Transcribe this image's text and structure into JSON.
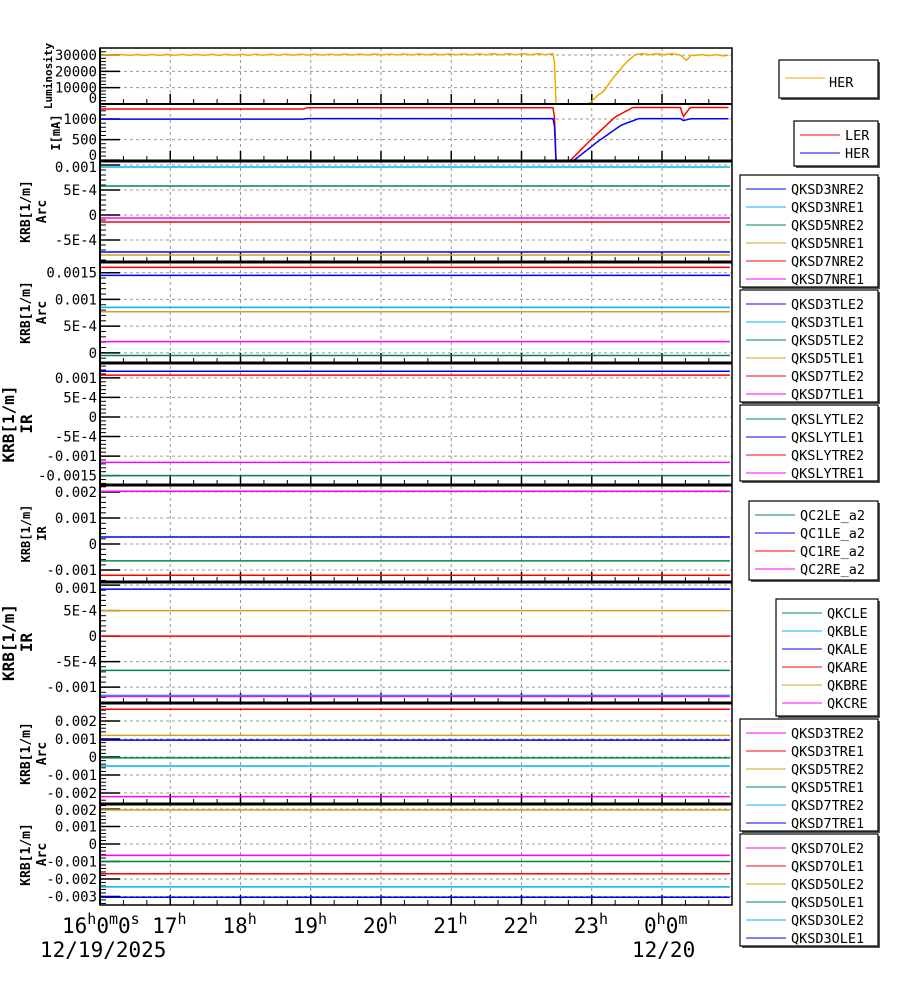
{
  "colors": {
    "blue": "#0000ff",
    "lightblue": "#00b4f0",
    "green": "#00884a",
    "gold": "#d4a020",
    "orange": "#f0a800",
    "red": "#ff0000",
    "magenta": "#ff00ff"
  },
  "x_axis": {
    "range": [
      "16:00",
      "00:58"
    ],
    "ticks": [
      {
        "t": "16:00",
        "label": "16h0m0s"
      },
      {
        "t": "17:00",
        "label": "17h"
      },
      {
        "t": "18:00",
        "label": "18h"
      },
      {
        "t": "19:00",
        "label": "19h"
      },
      {
        "t": "20:00",
        "label": "20h"
      },
      {
        "t": "21:00",
        "label": "21h"
      },
      {
        "t": "22:00",
        "label": "22h"
      },
      {
        "t": "23:00",
        "label": "23h"
      },
      {
        "t": "00:00",
        "label": "0h0m"
      }
    ],
    "dates": [
      {
        "t": "16:00",
        "label": "12/19/2025"
      },
      {
        "t": "00:00",
        "label": "12/20"
      }
    ]
  },
  "chart_data": [
    {
      "type": "line",
      "ylabel": [
        "Luminosity"
      ],
      "ylim": [
        0,
        34300
      ],
      "grid": true,
      "yticks": [
        {
          "v": 30000,
          "label": "30000"
        },
        {
          "v": 20000,
          "label": "20000"
        },
        {
          "v": 10000,
          "label": "10000"
        },
        {
          "v": 0,
          "label": "0"
        }
      ],
      "legend": {
        "placement": "right",
        "large": true
      },
      "series": [
        {
          "name": "HER",
          "color": "orange",
          "points": [
            [
              "16:00",
              30000
            ],
            [
              "22:28",
              30500
            ],
            [
              "22:29",
              0
            ],
            [
              "22:57",
              0
            ],
            [
              "23:10",
              8000
            ],
            [
              "23:25",
              22000
            ],
            [
              "23:37",
              30500
            ],
            [
              "00:15",
              30500
            ],
            [
              "00:21",
              26500
            ],
            [
              "00:25",
              30000
            ],
            [
              "00:58",
              29800
            ]
          ]
        }
      ]
    },
    {
      "type": "line",
      "ylabel": [
        "I[mA]"
      ],
      "ylim": [
        -20,
        1366
      ],
      "grid": true,
      "yticks": [
        {
          "v": 1000,
          "label": "1000"
        },
        {
          "v": 500,
          "label": "500"
        },
        {
          "v": 0,
          "label": "0"
        }
      ],
      "legend": {
        "placement": "right"
      },
      "series": [
        {
          "name": "LER",
          "color": "red",
          "points": [
            [
              "16:00",
              1245
            ],
            [
              "18:55",
              1245
            ],
            [
              "18:56",
              1275
            ],
            [
              "22:28",
              1275
            ],
            [
              "22:29",
              0
            ],
            [
              "22:42",
              0
            ],
            [
              "23:00",
              520
            ],
            [
              "23:20",
              1050
            ],
            [
              "23:35",
              1280
            ],
            [
              "00:16",
              1280
            ],
            [
              "00:18",
              1050
            ],
            [
              "00:24",
              1280
            ],
            [
              "00:58",
              1280
            ]
          ]
        },
        {
          "name": "HER",
          "color": "blue",
          "points": [
            [
              "16:00",
              1000
            ],
            [
              "18:55",
              1000
            ],
            [
              "18:56",
              1010
            ],
            [
              "22:28",
              1010
            ],
            [
              "22:29",
              0
            ],
            [
              "22:45",
              0
            ],
            [
              "23:05",
              450
            ],
            [
              "23:25",
              850
            ],
            [
              "23:40",
              1010
            ],
            [
              "00:16",
              1010
            ],
            [
              "00:18",
              960
            ],
            [
              "00:24",
              1005
            ],
            [
              "00:58",
              1005
            ]
          ]
        }
      ]
    },
    {
      "type": "line",
      "ylabel": [
        "KRB[1/m]",
        "Arc"
      ],
      "ylim": [
        -0.00094,
        0.00108
      ],
      "grid": true,
      "yticks": [
        {
          "v": 0.001,
          "label": "0.001"
        },
        {
          "v": 0.0005,
          "label": "5E-4"
        },
        {
          "v": 0,
          "label": "0"
        },
        {
          "v": -0.0005,
          "label": "-5E-4"
        }
      ],
      "series": [
        {
          "name": "QKSD3NRE2",
          "color": "blue",
          "value": -0.00074
        },
        {
          "name": "QKSD3NRE1",
          "color": "lightblue",
          "value": 0.00096
        },
        {
          "name": "QKSD5NRE2",
          "color": "green",
          "value": 0.00058
        },
        {
          "name": "QKSD5NRE1",
          "color": "gold",
          "value": -0.0008
        },
        {
          "name": "QKSD7NRE2",
          "color": "red",
          "value": -0.00014
        },
        {
          "name": "QKSD7NRE1",
          "color": "magenta",
          "value": -6e-05
        }
      ]
    },
    {
      "type": "line",
      "ylabel": [
        "KRB[1/m]",
        "Arc"
      ],
      "ylim": [
        -0.00019,
        0.0017
      ],
      "grid": true,
      "yticks": [
        {
          "v": 0.0015,
          "label": "0.0015"
        },
        {
          "v": 0.001,
          "label": "0.001"
        },
        {
          "v": 0.0005,
          "label": "5E-4"
        },
        {
          "v": 0,
          "label": "0"
        }
      ],
      "series": [
        {
          "name": "QKSD3TLE2",
          "color": "blue",
          "value": 0.00145
        },
        {
          "name": "QKSD3TLE1",
          "color": "lightblue",
          "value": 0.00085
        },
        {
          "name": "QKSD5TLE2",
          "color": "green",
          "value": -5e-05
        },
        {
          "name": "QKSD5TLE1",
          "color": "gold",
          "value": 0.00077
        },
        {
          "name": "QKSD7TLE2",
          "color": "red",
          "value": 0.0016
        },
        {
          "name": "QKSD7TLE1",
          "color": "magenta",
          "value": 0.00021
        }
      ]
    },
    {
      "type": "line",
      "ylabel": [
        "KRB[1/m]",
        "IR"
      ],
      "ylim": [
        -0.00174,
        0.00138
      ],
      "grid": true,
      "yticks": [
        {
          "v": 0.001,
          "label": "0.001"
        },
        {
          "v": 0.0005,
          "label": "5E-4"
        },
        {
          "v": 0,
          "label": "0"
        },
        {
          "v": -0.0005,
          "label": "-5E-4"
        },
        {
          "v": -0.001,
          "label": "-0.001"
        },
        {
          "v": -0.0015,
          "label": "-0.0015"
        }
      ],
      "series": [
        {
          "name": "QKSLYTLE2",
          "color": "green",
          "value": -0.0015
        },
        {
          "name": "QKSLYTLE1",
          "color": "blue",
          "value": 0.00117
        },
        {
          "name": "QKSLYTRE2",
          "color": "red",
          "value": 0.00107
        },
        {
          "name": "QKSLYTRE1",
          "color": "magenta",
          "value": -0.00116
        }
      ]
    },
    {
      "type": "line",
      "ylabel": [
        "KRB[1/m]",
        "IR"
      ],
      "ylim": [
        -0.00146,
        0.00227
      ],
      "grid": true,
      "yticks": [
        {
          "v": 0.002,
          "label": "0.002"
        },
        {
          "v": 0.001,
          "label": "0.001"
        },
        {
          "v": 0,
          "label": "0"
        },
        {
          "v": -0.001,
          "label": "-0.001"
        }
      ],
      "series": [
        {
          "name": "QC2LE_a2",
          "color": "green",
          "value": -0.00065
        },
        {
          "name": "QC1LE_a2",
          "color": "blue",
          "value": 0.00027
        },
        {
          "name": "QC1RE_a2",
          "color": "red",
          "value": -0.0012
        },
        {
          "name": "QC2RE_a2",
          "color": "magenta",
          "value": 0.00203
        }
      ]
    },
    {
      "type": "line",
      "ylabel": [
        "KRB[1/m]",
        "IR"
      ],
      "ylim": [
        -0.00131,
        0.00106
      ],
      "grid": true,
      "yticks": [
        {
          "v": 0.001,
          "label": "0.001"
        },
        {
          "v": 0.0005,
          "label": "5E-4"
        },
        {
          "v": 0,
          "label": "0"
        },
        {
          "v": -0.0005,
          "label": "-5E-4"
        },
        {
          "v": -0.001,
          "label": "-0.001"
        }
      ],
      "series": [
        {
          "name": "QKCLE",
          "color": "green",
          "value": -0.00067
        },
        {
          "name": "QKBLE",
          "color": "lightblue",
          "value": -0.00116
        },
        {
          "name": "QKALE",
          "color": "blue",
          "value": 0.00092
        },
        {
          "name": "QKARE",
          "color": "red",
          "value": 0
        },
        {
          "name": "QKBRE",
          "color": "gold",
          "value": 0.0005
        },
        {
          "name": "QKCRE",
          "color": "magenta",
          "value": -0.00118
        }
      ]
    },
    {
      "type": "line",
      "ylabel": [
        "KRB[1/m]",
        "Arc"
      ],
      "ylim": [
        -0.00261,
        0.003
      ],
      "grid": true,
      "yticks": [
        {
          "v": 0.002,
          "label": "0.002"
        },
        {
          "v": 0.001,
          "label": "0.001"
        },
        {
          "v": 0,
          "label": "0"
        },
        {
          "v": -0.001,
          "label": "-0.001"
        },
        {
          "v": -0.002,
          "label": "-0.002"
        }
      ],
      "series": [
        {
          "name": "QKSD3TRE2",
          "color": "magenta",
          "value": -0.0022
        },
        {
          "name": "QKSD3TRE1",
          "color": "red",
          "value": 0.00265
        },
        {
          "name": "QKSD5TRE2",
          "color": "gold",
          "value": 0.0012
        },
        {
          "name": "QKSD5TRE1",
          "color": "green",
          "value": -5e-05
        },
        {
          "name": "QKSD7TRE2",
          "color": "lightblue",
          "value": -0.0005
        },
        {
          "name": "QKSD7TRE1",
          "color": "blue",
          "value": 0.00094
        }
      ]
    },
    {
      "type": "line",
      "ylabel": [
        "KRB[1/m]",
        "Arc"
      ],
      "ylim": [
        -0.00349,
        0.00229
      ],
      "grid": true,
      "yticks": [
        {
          "v": 0.002,
          "label": "0.002"
        },
        {
          "v": 0.001,
          "label": "0.001"
        },
        {
          "v": 0,
          "label": "0"
        },
        {
          "v": -0.001,
          "label": "-0.001"
        },
        {
          "v": -0.002,
          "label": "-0.002"
        },
        {
          "v": -0.003,
          "label": "-0.003"
        }
      ],
      "series": [
        {
          "name": "QKSD7OLE2",
          "color": "magenta",
          "value": -0.00065
        },
        {
          "name": "QKSD7OLE1",
          "color": "red",
          "value": -0.0017
        },
        {
          "name": "QKSD5OLE2",
          "color": "gold",
          "value": 0.00195
        },
        {
          "name": "QKSD5OLE1",
          "color": "green",
          "value": -0.001
        },
        {
          "name": "QKSD3OLE2",
          "color": "lightblue",
          "value": -0.00245
        },
        {
          "name": "QKSD3OLE1",
          "color": "blue",
          "value": -0.00305
        }
      ]
    }
  ]
}
